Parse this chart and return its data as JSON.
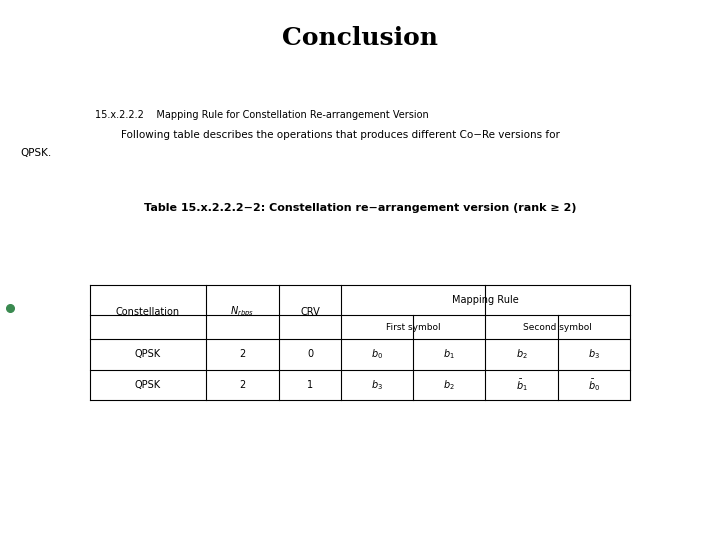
{
  "title": "Conclusion",
  "section_label": "15.x.2.2.2    Mapping Rule for Constellation Re-arrangement Version",
  "body_line1": "        Following table describes the operations that produces different Co−Re versions for",
  "body_line2": "QPSK.",
  "table_title": "Table 15.x.2.2.2−2: Constellation re−arrangement version (rank ≥ 2)",
  "bg_color": "#ffffff",
  "title_fontsize": 18,
  "section_fontsize": 7,
  "body_fontsize": 7.5,
  "table_title_fontsize": 8,
  "cell_fontsize": 7,
  "green_dot_color": "#3a8a50"
}
